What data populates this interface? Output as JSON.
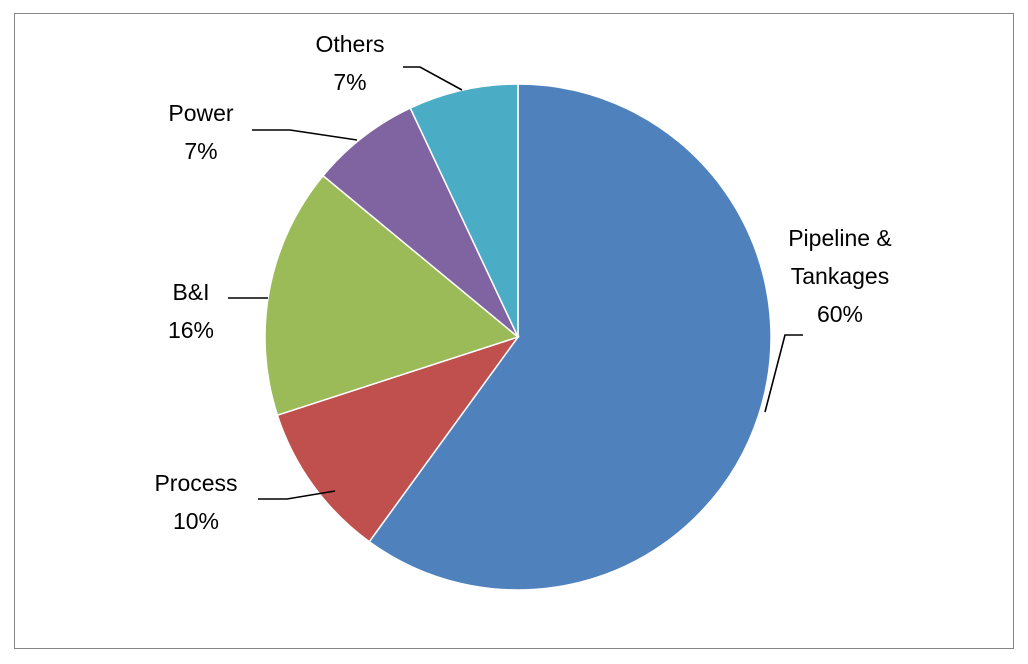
{
  "chart_data": {
    "type": "pie",
    "title": "",
    "slices": [
      {
        "label_lines": [
          "Pipeline &",
          "Tankages"
        ],
        "label": "Pipeline & Tankages",
        "value": 60,
        "value_text": "60%",
        "color": "#4F81BD"
      },
      {
        "label_lines": [
          "Process"
        ],
        "label": "Process",
        "value": 10,
        "value_text": "10%",
        "color": "#C0504D"
      },
      {
        "label_lines": [
          "B&I"
        ],
        "label": "B&I",
        "value": 16,
        "value_text": "16%",
        "color": "#9BBB59"
      },
      {
        "label_lines": [
          "Power"
        ],
        "label": "Power",
        "value": 7,
        "value_text": "7%",
        "color": "#8064A2"
      },
      {
        "label_lines": [
          "Others"
        ],
        "label": "Others",
        "value": 7,
        "value_text": "7%",
        "color": "#4BACC6"
      }
    ],
    "start_angle_deg": 0,
    "direction": "clockwise",
    "legend": "none"
  }
}
